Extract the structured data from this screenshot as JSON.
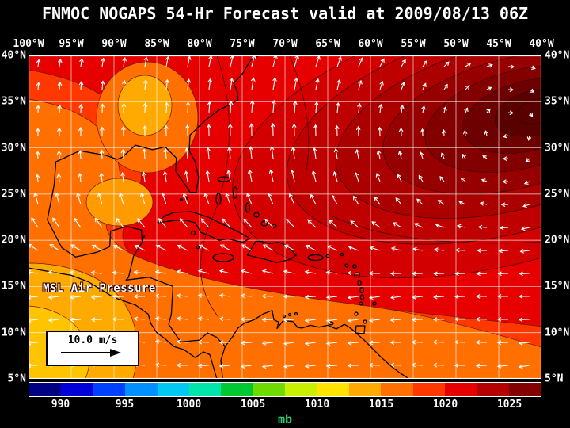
{
  "title": "FNMOC NOGAPS 54-Hr Forecast valid at 2009/08/13 06Z",
  "map": {
    "overlay_label": "MSL Air Pressure",
    "wind_reference_label": "10.0 m/s",
    "longitude_labels": [
      "100°W",
      "95°W",
      "90°W",
      "85°W",
      "80°W",
      "75°W",
      "70°W",
      "65°W",
      "60°W",
      "55°W",
      "50°W",
      "45°W",
      "40°W"
    ],
    "latitude_labels": [
      "40°N",
      "35°N",
      "30°N",
      "25°N",
      "20°N",
      "15°N",
      "10°N",
      "5°N"
    ]
  },
  "colorbar": {
    "unit": "mb",
    "unit_color": "#2fcf6e",
    "tick_labels": [
      "990",
      "995",
      "1000",
      "1005",
      "1010",
      "1015",
      "1020",
      "1025"
    ],
    "colors": [
      "#000082",
      "#0000d9",
      "#0040ff",
      "#0090ff",
      "#00c8f0",
      "#00e6aa",
      "#00c832",
      "#6edc00",
      "#c8f000",
      "#ffe400",
      "#ffaa00",
      "#ff7000",
      "#ff3800",
      "#e60000",
      "#b40000",
      "#820000"
    ]
  },
  "chart_data": {
    "type": "heatmap",
    "title": "FNMOC NOGAPS 54-Hr Forecast valid at 2009/08/13 06Z",
    "variable": "MSL Air Pressure",
    "unit": "mb",
    "x_range": [
      "100°W",
      "40°W"
    ],
    "y_range": [
      "5°N",
      "40°N"
    ],
    "colorbar_ticks": [
      990,
      995,
      1000,
      1005,
      1010,
      1015,
      1020,
      1025
    ],
    "wind_reference": "10.0 m/s",
    "readings": [
      {
        "region": "high pressure center near 45°W 33°N (darkest red, NE corner)",
        "pressure_mb": 1026
      },
      {
        "region": "central Atlantic 70-55°W, 20-30°N",
        "pressure_mb": 1017
      },
      {
        "region": "Gulf of Mexico near 90°W 30°N",
        "pressure_mb": 1011
      },
      {
        "region": "Caribbean and tropics south of 15°N",
        "pressure_mb": 1011
      },
      {
        "region": "eastern Pacific SW corner near 97°W 8°N",
        "pressure_mb": 1009
      }
    ]
  }
}
